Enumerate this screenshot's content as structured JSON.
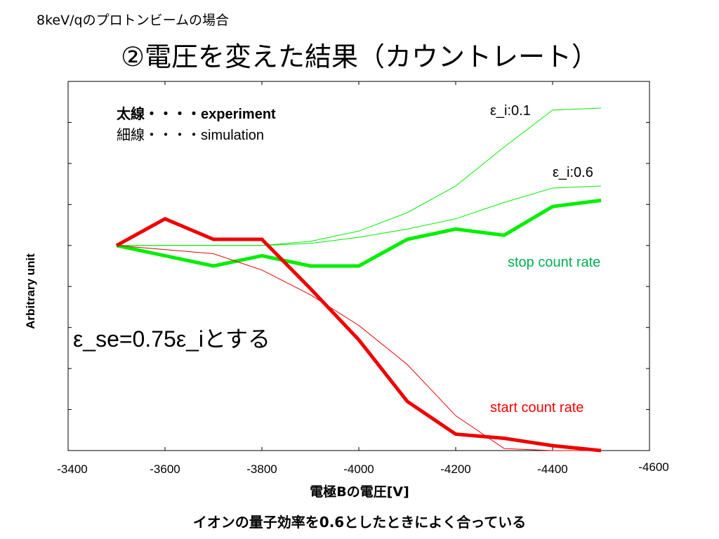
{
  "subtitle": "8keV/qのプロトンビームの場合",
  "title": "②電圧を変えた結果（カウントレート）",
  "footer": "イオンの量子効率を0.6としたときによく合っている",
  "legend": {
    "thick": "太線・・・・experiment",
    "thin": "細線・・・・simulation"
  },
  "annotations": {
    "eps_01": "ε_i:0.1",
    "eps_06": "ε_i:0.6",
    "stop": "stop count rate",
    "start": "start count rate",
    "note": "ε_se=0.75ε_iとする"
  },
  "colors": {
    "green": "#00ee00",
    "red": "#ee0000",
    "stop_text": "#00b050",
    "start_text": "#ff0000"
  },
  "chart_data": {
    "type": "line",
    "xlabel": "電極Bの電圧[V]",
    "ylabel": "Arbitrary unit",
    "xlim": [
      -3400,
      -4600
    ],
    "ylim": [
      0,
      9
    ],
    "x_tick_labels": [
      "-3400",
      "-3600",
      "-3800",
      "-4000",
      "-4200",
      "-4400",
      "-4600"
    ],
    "grid": false,
    "series": [
      {
        "name": "stop count rate experiment",
        "color": "#00ee00",
        "width": "thick",
        "x": [
          -3500,
          -3700,
          -3800,
          -3900,
          -4000,
          -4100,
          -4200,
          -4300,
          -4400,
          -4500
        ],
        "y": [
          5.0,
          4.5,
          4.75,
          4.5,
          4.5,
          5.15,
          5.4,
          5.25,
          5.95,
          6.1
        ]
      },
      {
        "name": "ε_i:0.1",
        "color": "#00ee00",
        "width": "thin",
        "x": [
          -3500,
          -3800,
          -3900,
          -4000,
          -4100,
          -4200,
          -4300,
          -4400,
          -4500
        ],
        "y": [
          5.0,
          5.0,
          5.1,
          5.35,
          5.8,
          6.45,
          7.4,
          8.3,
          8.35
        ]
      },
      {
        "name": "ε_i:0.6",
        "color": "#00ee00",
        "width": "thin",
        "x": [
          -3500,
          -3800,
          -3900,
          -4000,
          -4100,
          -4200,
          -4300,
          -4400,
          -4500
        ],
        "y": [
          5.0,
          5.0,
          5.05,
          5.2,
          5.4,
          5.65,
          6.05,
          6.4,
          6.45
        ]
      },
      {
        "name": "start count rate experiment",
        "color": "#ee0000",
        "width": "thick",
        "x": [
          -3500,
          -3600,
          -3700,
          -3800,
          -3900,
          -4000,
          -4100,
          -4200,
          -4300,
          -4400,
          -4500
        ],
        "y": [
          5.0,
          5.65,
          5.15,
          5.15,
          3.95,
          2.7,
          1.2,
          0.4,
          0.3,
          0.12,
          0.0
        ]
      },
      {
        "name": "start count rate simulation",
        "color": "#ee0000",
        "width": "thin",
        "x": [
          -3500,
          -3700,
          -3800,
          -3900,
          -4000,
          -4100,
          -4200,
          -4300,
          -4400,
          -4500
        ],
        "y": [
          5.0,
          4.8,
          4.4,
          3.8,
          3.05,
          2.1,
          0.85,
          0.05,
          0.0,
          0.0
        ]
      }
    ]
  }
}
